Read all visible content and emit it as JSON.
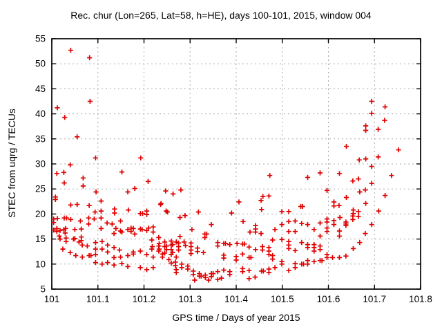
{
  "chart_data": {
    "type": "scatter",
    "title": "Rec. chur (Lon=265, Lat=58, h=HE), days 100-101, 2015, window 004",
    "xlabel": "GPS time / Days of year 2015",
    "ylabel": "STEC from uqrg / TECUs",
    "xlim": [
      101,
      101.8
    ],
    "ylim": [
      5,
      55
    ],
    "xticks": [
      101,
      101.1,
      101.2,
      101.3,
      101.4,
      101.5,
      101.6,
      101.7,
      101.8
    ],
    "xtick_labels": [
      "101",
      "101.1",
      "101.2",
      "101.3",
      "101.4",
      "101.5",
      "101.6",
      "101.7",
      "101.8"
    ],
    "yticks": [
      5,
      10,
      15,
      20,
      25,
      30,
      35,
      40,
      45,
      50,
      55
    ],
    "ytick_labels": [
      "5",
      "10",
      "15",
      "20",
      "25",
      "30",
      "35",
      "40",
      "45",
      "50",
      "55"
    ],
    "grid": true,
    "legend_position": "none",
    "marker": "plus",
    "marker_color": "#e10000",
    "grid_color": "#a8a8a8",
    "border_color": "#000000",
    "background_color": "#ffffff",
    "series_name": "STEC",
    "points": [
      [
        101.041,
        52.7
      ],
      [
        101.082,
        51.2
      ],
      [
        101.083,
        42.5
      ],
      [
        101.012,
        41.2
      ],
      [
        101.028,
        39.3
      ],
      [
        101.055,
        35.4
      ],
      [
        101.095,
        31.2
      ],
      [
        101.193,
        31.2
      ],
      [
        101.04,
        29.8
      ],
      [
        101.152,
        28.4
      ],
      [
        101.011,
        28.1
      ],
      [
        101.026,
        28.3
      ],
      [
        101.068,
        27.2
      ],
      [
        101.027,
        26.2
      ],
      [
        101.068,
        25.6
      ],
      [
        101.209,
        26.5
      ],
      [
        101.18,
        25.1
      ],
      [
        101.165,
        24.4
      ],
      [
        101.096,
        24.4
      ],
      [
        101.247,
        24.6
      ],
      [
        101.263,
        24.0
      ],
      [
        101.008,
        23.4
      ],
      [
        101.008,
        22.9
      ],
      [
        101.041,
        21.8
      ],
      [
        101.055,
        21.9
      ],
      [
        101.081,
        21.7
      ],
      [
        101.107,
        22.6
      ],
      [
        101.237,
        22.1
      ],
      [
        101.248,
        20.6
      ],
      [
        101.094,
        20.4
      ],
      [
        101.107,
        20.6
      ],
      [
        101.136,
        21.0
      ],
      [
        101.136,
        20.2
      ],
      [
        101.166,
        20.8
      ],
      [
        101.192,
        20.1
      ],
      [
        101.197,
        20.1
      ],
      [
        101.206,
        20.6
      ],
      [
        101.206,
        19.9
      ],
      [
        101.012,
        19.1
      ],
      [
        101.004,
        19.0
      ],
      [
        101.004,
        18.3
      ],
      [
        101.027,
        19.2
      ],
      [
        101.032,
        19.2
      ],
      [
        101.041,
        18.9
      ],
      [
        101.062,
        18.6
      ],
      [
        101.08,
        19.2
      ],
      [
        101.08,
        18.0
      ],
      [
        101.092,
        19.0
      ],
      [
        101.107,
        19.2
      ],
      [
        101.12,
        18.2
      ],
      [
        101.131,
        18.0
      ],
      [
        101.149,
        18.6
      ],
      [
        101.011,
        17.1
      ],
      [
        101.011,
        16.5
      ],
      [
        101.026,
        16.9
      ],
      [
        101.029,
        16.2
      ],
      [
        101.05,
        16.9
      ],
      [
        101.064,
        17.0
      ],
      [
        101.107,
        17.1
      ],
      [
        101.135,
        16.1
      ],
      [
        101.149,
        16.6
      ],
      [
        101.165,
        16.9
      ],
      [
        101.172,
        17.2
      ],
      [
        101.172,
        16.5
      ],
      [
        101.18,
        16.0
      ],
      [
        101.192,
        17.0
      ],
      [
        101.196,
        16.9
      ],
      [
        101.206,
        16.7
      ],
      [
        101.22,
        17.4
      ],
      [
        101.22,
        16.4
      ],
      [
        101.016,
        15.6
      ],
      [
        101.047,
        15.0
      ],
      [
        101.064,
        15.4
      ],
      [
        101.064,
        14.7
      ],
      [
        101.004,
        16.8
      ],
      [
        101.018,
        16.7
      ],
      [
        101.03,
        17.1
      ],
      [
        101.139,
        17.1
      ],
      [
        101.152,
        16.4
      ],
      [
        101.177,
        17.1
      ],
      [
        101.018,
        15.0
      ],
      [
        101.031,
        15.2
      ],
      [
        101.031,
        14.5
      ],
      [
        101.05,
        15.1
      ],
      [
        101.059,
        14.4
      ],
      [
        101.066,
        13.8
      ],
      [
        101.077,
        13.6
      ],
      [
        101.024,
        13.0
      ],
      [
        101.04,
        12.3
      ],
      [
        101.052,
        11.7
      ],
      [
        101.066,
        11.4
      ],
      [
        101.081,
        11.7
      ],
      [
        101.085,
        11.7
      ],
      [
        101.095,
        14.3
      ],
      [
        101.095,
        13.0
      ],
      [
        101.095,
        11.9
      ],
      [
        101.109,
        14.5
      ],
      [
        101.109,
        13.0
      ],
      [
        101.121,
        13.8
      ],
      [
        101.121,
        12.4
      ],
      [
        101.135,
        13.3
      ],
      [
        101.147,
        12.8
      ],
      [
        101.135,
        11.3
      ],
      [
        101.149,
        11.4
      ],
      [
        101.165,
        11.7
      ],
      [
        101.177,
        12.4
      ],
      [
        101.177,
        12.0
      ],
      [
        101.192,
        12.6
      ],
      [
        101.206,
        11.9
      ],
      [
        101.22,
        11.4
      ],
      [
        101.095,
        10.3
      ],
      [
        101.109,
        10.0
      ],
      [
        101.121,
        10.3
      ],
      [
        101.135,
        9.8
      ],
      [
        101.152,
        10.1
      ],
      [
        101.165,
        9.5
      ],
      [
        101.192,
        9.3
      ],
      [
        101.206,
        8.9
      ],
      [
        101.22,
        9.3
      ],
      [
        101.232,
        15.3
      ],
      [
        101.232,
        13.6
      ],
      [
        101.232,
        12.6
      ],
      [
        101.245,
        14.4
      ],
      [
        101.245,
        13.5
      ],
      [
        101.245,
        12.2
      ],
      [
        101.259,
        14.6
      ],
      [
        101.259,
        13.8
      ],
      [
        101.259,
        12.9
      ],
      [
        101.259,
        11.9
      ],
      [
        101.27,
        14.4
      ],
      [
        101.27,
        11.4
      ],
      [
        101.259,
        10.2
      ],
      [
        101.27,
        8.9
      ],
      [
        101.27,
        8.3
      ],
      [
        101.473,
        27.7
      ],
      [
        101.28,
        24.8
      ],
      [
        101.236,
        21.9
      ],
      [
        101.251,
        20.4
      ],
      [
        101.278,
        19.3
      ],
      [
        101.289,
        19.7
      ],
      [
        101.318,
        20.4
      ],
      [
        101.39,
        20.2
      ],
      [
        101.406,
        22.4
      ],
      [
        101.455,
        20.9
      ],
      [
        101.458,
        23.5
      ],
      [
        101.471,
        23.6
      ],
      [
        101.454,
        22.7
      ],
      [
        101.415,
        18.5
      ],
      [
        101.442,
        17.7
      ],
      [
        101.442,
        17.0
      ],
      [
        101.442,
        16.4
      ],
      [
        101.43,
        16.4
      ],
      [
        101.454,
        16.1
      ],
      [
        101.346,
        17.9
      ],
      [
        101.304,
        16.9
      ],
      [
        101.332,
        16.0
      ],
      [
        101.336,
        16.0
      ],
      [
        101.332,
        15.3
      ],
      [
        101.278,
        15.5
      ],
      [
        101.21,
        17.2
      ],
      [
        101.217,
        14.8
      ],
      [
        101.233,
        14.1
      ],
      [
        101.218,
        13.5
      ],
      [
        101.217,
        13.0
      ],
      [
        101.233,
        13.0
      ],
      [
        101.249,
        13.6
      ],
      [
        101.249,
        12.9
      ],
      [
        101.262,
        13.9
      ],
      [
        101.262,
        12.3
      ],
      [
        101.275,
        14.2
      ],
      [
        101.275,
        13.5
      ],
      [
        101.275,
        12.8
      ],
      [
        101.287,
        14.4
      ],
      [
        101.29,
        13.7
      ],
      [
        101.302,
        14.2
      ],
      [
        101.302,
        13.5
      ],
      [
        101.302,
        12.8
      ],
      [
        101.302,
        12.1
      ],
      [
        101.316,
        13.2
      ],
      [
        101.316,
        12.5
      ],
      [
        101.329,
        12.3
      ],
      [
        101.36,
        14.3
      ],
      [
        101.36,
        13.6
      ],
      [
        101.373,
        14.1
      ],
      [
        101.377,
        14.1
      ],
      [
        101.386,
        13.9
      ],
      [
        101.402,
        14.1
      ],
      [
        101.414,
        14.0
      ],
      [
        101.418,
        14.0
      ],
      [
        101.428,
        13.4
      ],
      [
        101.373,
        11.8
      ],
      [
        101.373,
        11.2
      ],
      [
        101.4,
        11.5
      ],
      [
        101.4,
        10.8
      ],
      [
        101.414,
        12.0
      ],
      [
        101.428,
        11.3
      ],
      [
        101.432,
        11.3
      ],
      [
        101.442,
        12.9
      ],
      [
        101.457,
        13.5
      ],
      [
        101.457,
        12.8
      ],
      [
        101.471,
        13.3
      ],
      [
        101.471,
        12.6
      ],
      [
        101.471,
        11.9
      ],
      [
        101.24,
        12.0
      ],
      [
        101.24,
        11.4
      ],
      [
        101.254,
        10.9
      ],
      [
        101.268,
        10.4
      ],
      [
        101.268,
        9.7
      ],
      [
        101.282,
        10.0
      ],
      [
        101.282,
        9.3
      ],
      [
        101.295,
        9.6
      ],
      [
        101.295,
        9.0
      ],
      [
        101.307,
        8.6
      ],
      [
        101.307,
        7.9
      ],
      [
        101.32,
        8.1
      ],
      [
        101.32,
        7.6
      ],
      [
        101.324,
        7.6
      ],
      [
        101.333,
        7.8
      ],
      [
        101.333,
        7.3
      ],
      [
        101.346,
        8.1
      ],
      [
        101.35,
        8.1
      ],
      [
        101.346,
        7.5
      ],
      [
        101.36,
        8.5
      ],
      [
        101.36,
        6.9
      ],
      [
        101.373,
        8.8
      ],
      [
        101.386,
        8.5
      ],
      [
        101.386,
        7.9
      ],
      [
        101.414,
        9.1
      ],
      [
        101.414,
        8.5
      ],
      [
        101.428,
        8.7
      ],
      [
        101.428,
        7.1
      ],
      [
        101.441,
        7.4
      ],
      [
        101.455,
        8.6
      ],
      [
        101.459,
        8.6
      ],
      [
        101.471,
        9.0
      ],
      [
        101.471,
        8.3
      ],
      [
        101.31,
        6.8
      ],
      [
        101.34,
        6.8
      ],
      [
        101.368,
        7.2
      ],
      [
        101.694,
        42.5
      ],
      [
        101.723,
        41.4
      ],
      [
        101.694,
        40.1
      ],
      [
        101.722,
        38.7
      ],
      [
        101.681,
        37.6
      ],
      [
        101.681,
        36.7
      ],
      [
        101.708,
        36.9
      ],
      [
        101.639,
        33.5
      ],
      [
        101.752,
        32.8
      ],
      [
        101.708,
        31.4
      ],
      [
        101.667,
        30.8
      ],
      [
        101.681,
        31.0
      ],
      [
        101.694,
        29.5
      ],
      [
        101.582,
        28.2
      ],
      [
        101.624,
        28.1
      ],
      [
        101.555,
        27.3
      ],
      [
        101.737,
        27.7
      ],
      [
        101.653,
        26.6
      ],
      [
        101.665,
        27.0
      ],
      [
        101.694,
        26.1
      ],
      [
        101.597,
        24.7
      ],
      [
        101.668,
        24.4
      ],
      [
        101.68,
        24.8
      ],
      [
        101.723,
        23.7
      ],
      [
        101.639,
        23.3
      ],
      [
        101.681,
        22.1
      ],
      [
        101.612,
        22.4
      ],
      [
        101.612,
        21.6
      ],
      [
        101.623,
        21.7
      ],
      [
        101.54,
        21.5
      ],
      [
        101.544,
        21.5
      ],
      [
        101.499,
        20.5
      ],
      [
        101.514,
        20.5
      ],
      [
        101.654,
        20.8
      ],
      [
        101.654,
        20.1
      ],
      [
        101.665,
        20.5
      ],
      [
        101.709,
        20.6
      ],
      [
        101.653,
        19.6
      ],
      [
        101.653,
        18.9
      ],
      [
        101.665,
        19.5
      ],
      [
        101.625,
        19.3
      ],
      [
        101.597,
        19.0
      ],
      [
        101.597,
        18.4
      ],
      [
        101.612,
        18.7
      ],
      [
        101.612,
        17.9
      ],
      [
        101.638,
        18.4
      ],
      [
        101.638,
        18.0
      ],
      [
        101.638,
        17.7
      ],
      [
        101.624,
        16.6
      ],
      [
        101.624,
        15.6
      ],
      [
        101.694,
        17.9
      ],
      [
        101.68,
        16.1
      ],
      [
        101.484,
        16.9
      ],
      [
        101.499,
        17.9
      ],
      [
        101.514,
        18.5
      ],
      [
        101.514,
        16.5
      ],
      [
        101.528,
        18.6
      ],
      [
        101.528,
        16.5
      ],
      [
        101.542,
        18.1
      ],
      [
        101.555,
        17.9
      ],
      [
        101.569,
        16.9
      ],
      [
        101.582,
        18.2
      ],
      [
        101.582,
        15.6
      ],
      [
        101.597,
        17.2
      ],
      [
        101.597,
        16.5
      ],
      [
        101.479,
        14.8
      ],
      [
        101.499,
        14.9
      ],
      [
        101.514,
        14.5
      ],
      [
        101.514,
        13.8
      ],
      [
        101.514,
        13.1
      ],
      [
        101.528,
        12.7
      ],
      [
        101.542,
        14.3
      ],
      [
        101.555,
        13.9
      ],
      [
        101.555,
        13.3
      ],
      [
        101.569,
        13.9
      ],
      [
        101.569,
        13.3
      ],
      [
        101.569,
        12.6
      ],
      [
        101.582,
        13.6
      ],
      [
        101.582,
        12.9
      ],
      [
        101.597,
        11.9
      ],
      [
        101.597,
        11.3
      ],
      [
        101.609,
        11.3
      ],
      [
        101.624,
        11.3
      ],
      [
        101.638,
        11.6
      ],
      [
        101.654,
        13.1
      ],
      [
        101.668,
        14.3
      ],
      [
        101.479,
        11.7
      ],
      [
        101.479,
        11.0
      ],
      [
        101.484,
        9.3
      ],
      [
        101.499,
        10.5
      ],
      [
        101.499,
        10.0
      ],
      [
        101.514,
        8.7
      ],
      [
        101.528,
        10.1
      ],
      [
        101.528,
        9.3
      ],
      [
        101.542,
        10.0
      ],
      [
        101.546,
        10.0
      ],
      [
        101.555,
        10.7
      ],
      [
        101.555,
        10.0
      ],
      [
        101.569,
        10.5
      ],
      [
        101.582,
        10.7
      ],
      [
        101.586,
        10.7
      ]
    ]
  }
}
